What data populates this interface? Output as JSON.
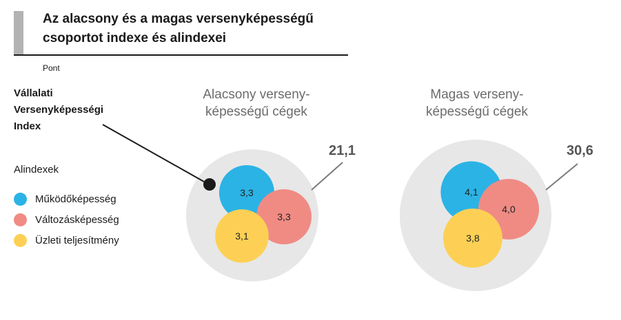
{
  "header": {
    "title_line1": "Az alacsony és a magas versenyképességű",
    "title_line2": "csoportot indexe és alindexei",
    "unit": "Pont"
  },
  "left_labels": {
    "index_line1": "Vállalati",
    "index_line2": "Versenyképességi",
    "index_line3": "Index",
    "subindex_title": "Alindexek"
  },
  "legend": [
    {
      "label": "Működőképesség",
      "color": "#2bb3e5"
    },
    {
      "label": "Változásképesség",
      "color": "#f08b84"
    },
    {
      "label": "Üzleti teljesítmény",
      "color": "#fdd055"
    }
  ],
  "colors": {
    "outer_circle": "#e7e7e7",
    "index_marker": "#1a1a1a",
    "connector_line": "#7a7a7a"
  },
  "chart_data": [
    {
      "type": "bubble",
      "title_line1": "Alacsony verseny-",
      "title_line2": "képességű cégek",
      "index_value": 21.1,
      "index_label": "21,1",
      "subindices": [
        {
          "name": "Működőképesség",
          "value": 3.3,
          "label": "3,3"
        },
        {
          "name": "Változásképesség",
          "value": 3.3,
          "label": "3,3"
        },
        {
          "name": "Üzleti teljesítmény",
          "value": 3.1,
          "label": "3,1"
        }
      ]
    },
    {
      "type": "bubble",
      "title_line1": "Magas verseny-",
      "title_line2": "képességű cégek",
      "index_value": 30.6,
      "index_label": "30,6",
      "subindices": [
        {
          "name": "Működőképesség",
          "value": 4.1,
          "label": "4,1"
        },
        {
          "name": "Változásképesség",
          "value": 4.0,
          "label": "4,0"
        },
        {
          "name": "Üzleti teljesítmény",
          "value": 3.8,
          "label": "3,8"
        }
      ]
    }
  ]
}
